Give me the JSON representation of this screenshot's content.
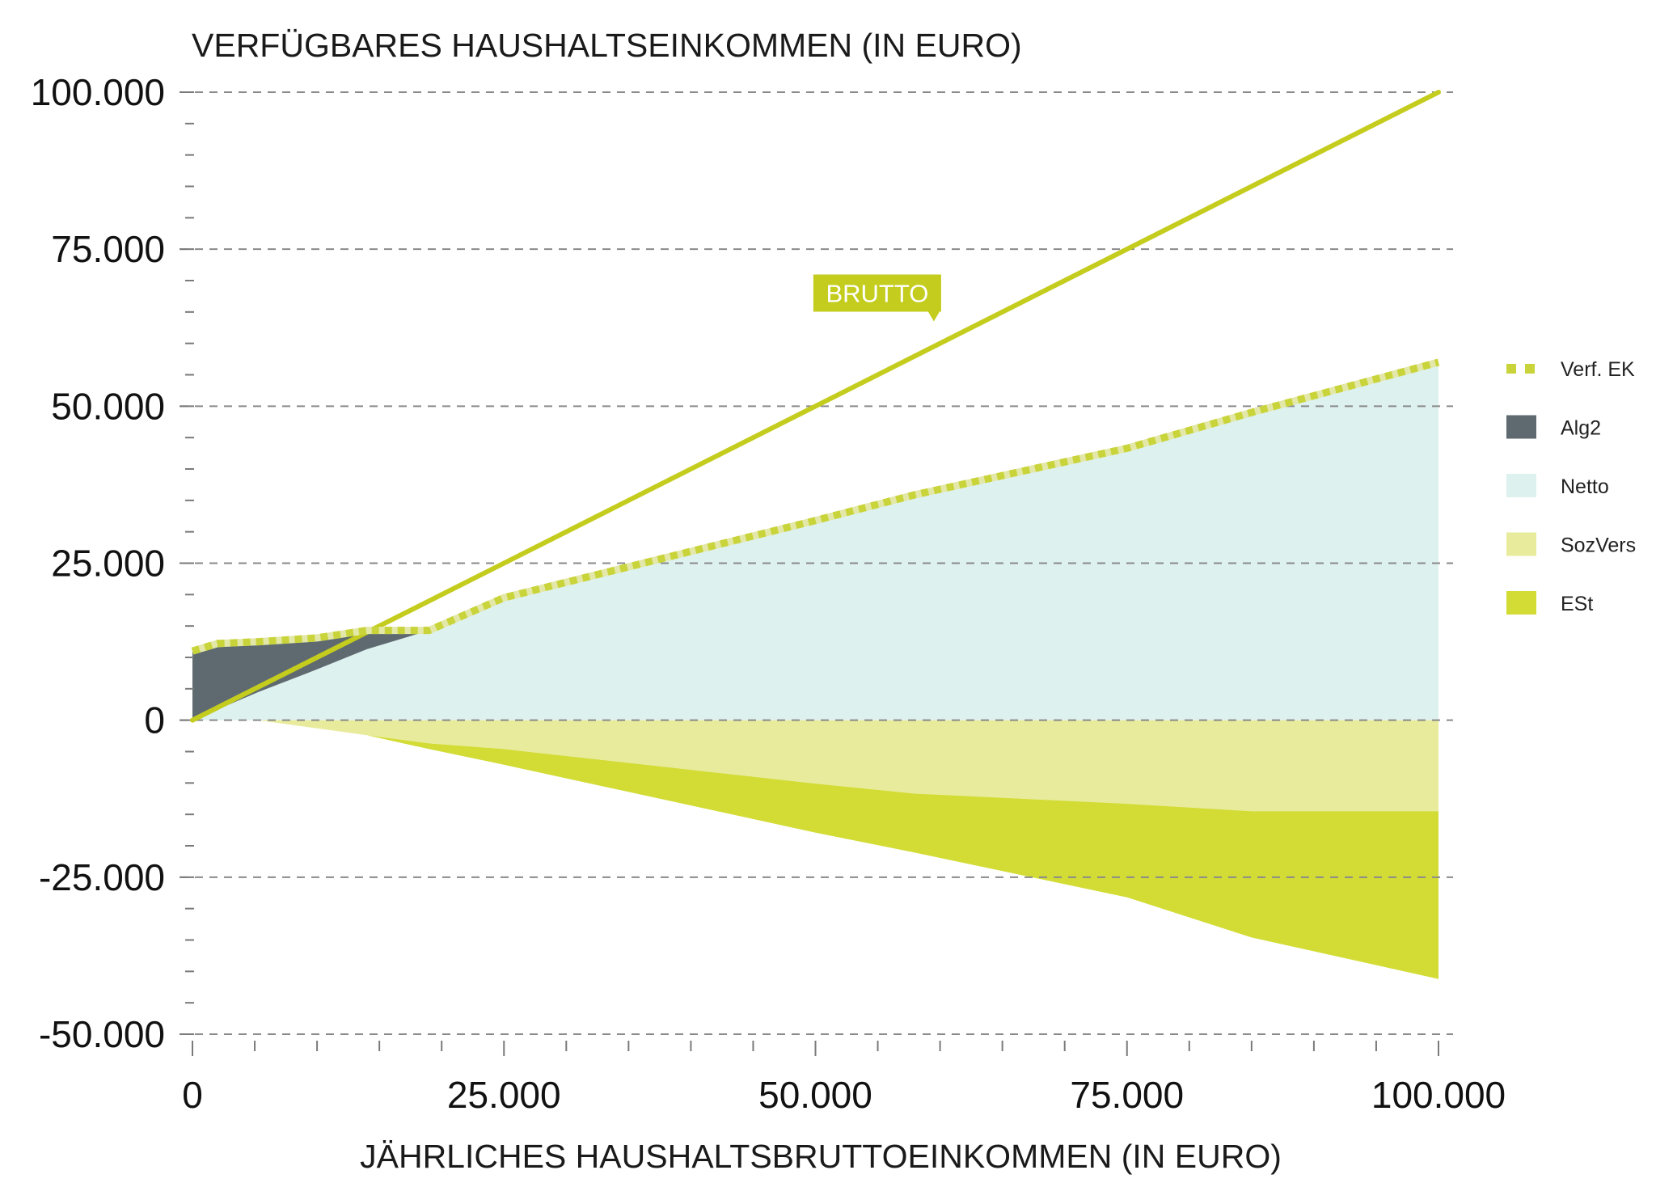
{
  "chart_data": {
    "type": "area",
    "title": "VERFÜGBARES HAUSHALTSEINKOMMEN (IN EURO)",
    "xlabel": "JÄHRLICHES HAUSHALTSBRUTTOEINKOMMEN (IN EURO)",
    "ylabel": "",
    "xlim": [
      0,
      100000
    ],
    "ylim": [
      -50000,
      100000
    ],
    "x_ticks": [
      0,
      25000,
      50000,
      75000,
      100000
    ],
    "x_tick_labels": [
      "0",
      "25.000",
      "50.000",
      "75.000",
      "100.000"
    ],
    "y_ticks": [
      100000,
      75000,
      50000,
      25000,
      0,
      -25000,
      -50000
    ],
    "y_tick_labels": [
      "100.000",
      "75.000",
      "50.000",
      "25.000",
      "0",
      "-25.000",
      "-50.000"
    ],
    "minor_tick_step": 5000,
    "grid": true,
    "legend_position": "right",
    "x": [
      0,
      2000,
      5300,
      10000,
      14000,
      19000,
      25000,
      50000,
      58000,
      75000,
      85000,
      100000
    ],
    "series": [
      {
        "name": "Netto",
        "kind": "area",
        "stack": "above",
        "color": "#ddf1ef",
        "values": [
          0,
          1700,
          4500,
          8100,
          11300,
          14300,
          19500,
          31800,
          35900,
          43300,
          49000,
          57000
        ]
      },
      {
        "name": "Alg2",
        "kind": "area",
        "stack": "above",
        "color": "#5e6a6f",
        "values": [
          11000,
          10500,
          8000,
          5000,
          3000,
          0,
          0,
          0,
          0,
          0,
          0,
          0
        ]
      },
      {
        "name": "SozVers",
        "kind": "area",
        "stack": "below",
        "color": "#e8eb9b",
        "values": [
          0,
          0,
          0,
          -1300,
          -2400,
          -3700,
          -4600,
          -10100,
          -11700,
          -13300,
          -14500,
          -14500
        ]
      },
      {
        "name": "ESt",
        "kind": "area",
        "stack": "below",
        "color": "#d2dc35",
        "values": [
          0,
          0,
          0,
          0,
          0,
          -900,
          -2500,
          -7800,
          -9400,
          -14900,
          -20100,
          -26700
        ]
      },
      {
        "name": "Verf. EK",
        "kind": "dotted-line",
        "color": "#c9d43a",
        "values": [
          11000,
          12200,
          12500,
          13100,
          14300,
          14300,
          19500,
          31800,
          35900,
          43300,
          49000,
          57000
        ]
      }
    ],
    "brutto_line": {
      "name": "BRUTTO",
      "color": "#c4cc1d",
      "x": [
        0,
        100000
      ],
      "values": [
        0,
        100000
      ]
    },
    "annotations": [
      {
        "text": "BRUTTO",
        "x": 59500,
        "y": 63500,
        "color": "#c4cc1d"
      }
    ],
    "legend": [
      {
        "label": "Verf. EK",
        "symbol": "dotted",
        "color": "#c9d43a"
      },
      {
        "label": "Alg2",
        "symbol": "box",
        "color": "#5e6a6f"
      },
      {
        "label": "Netto",
        "symbol": "box",
        "color": "#ddf1ef"
      },
      {
        "label": "SozVers",
        "symbol": "box",
        "color": "#e8eb9b"
      },
      {
        "label": "ESt",
        "symbol": "box",
        "color": "#d2dc35"
      }
    ]
  }
}
